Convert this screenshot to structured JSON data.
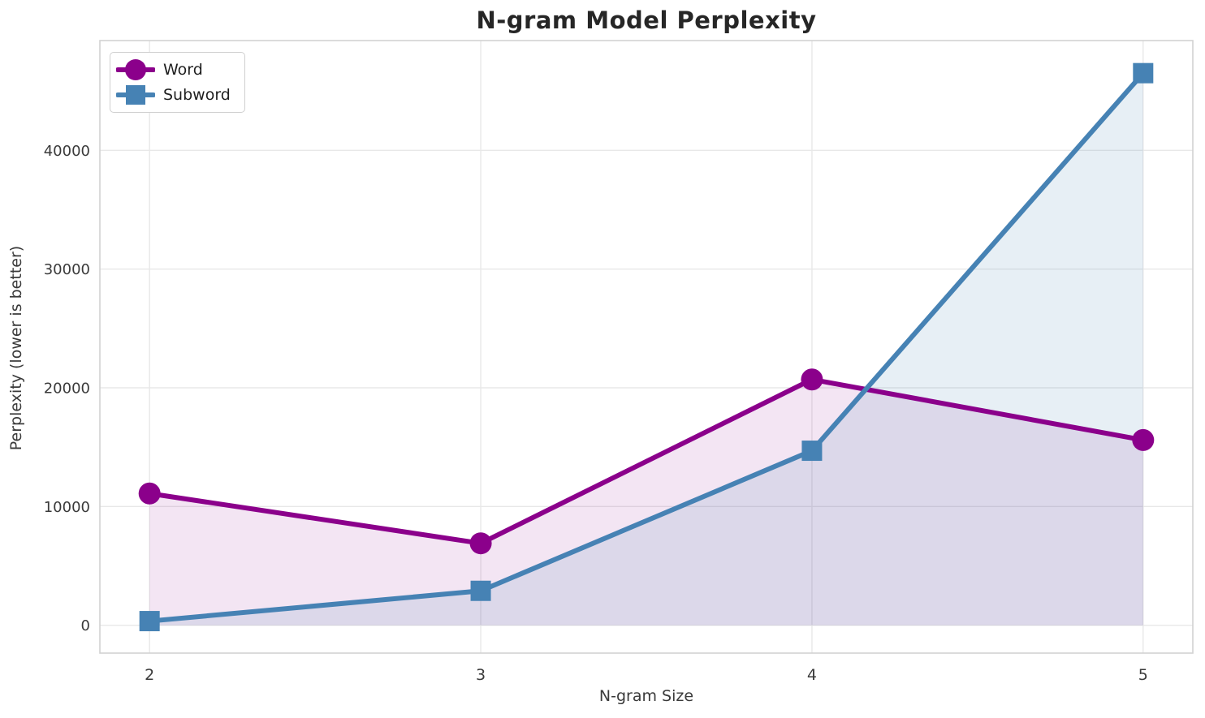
{
  "chart": {
    "title": "N-gram Model Perplexity",
    "xlabel": "N-gram Size",
    "ylabel": "Perplexity (lower is better)"
  },
  "chart_data": {
    "type": "line",
    "x": [
      2,
      3,
      4,
      5
    ],
    "series": [
      {
        "name": "Word",
        "marker": "circle",
        "color": "#8B008B",
        "fill_color": "rgba(139,0,139,0.10)",
        "values": [
          11100,
          6900,
          20700,
          15600
        ]
      },
      {
        "name": "Subword",
        "marker": "square",
        "color": "#4682B4",
        "fill_color": "rgba(70,130,180,0.13)",
        "values": [
          350,
          2900,
          14700,
          46500
        ]
      }
    ],
    "title": "N-gram Model Perplexity",
    "xlabel": "N-gram Size",
    "ylabel": "Perplexity (lower is better)",
    "x_ticks": [
      2,
      3,
      4,
      5
    ],
    "y_ticks": [
      0,
      10000,
      20000,
      30000,
      40000
    ],
    "xlim": [
      1.85,
      5.15
    ],
    "ylim": [
      -2345,
      49245
    ],
    "grid": true,
    "grid_color": "#e8e8e8",
    "spine_color": "#d2d2d2",
    "tick_label_color": "#3a3a3a",
    "legend_position": "upper left",
    "area_fill_to": 0,
    "fill_baseline": 0
  }
}
